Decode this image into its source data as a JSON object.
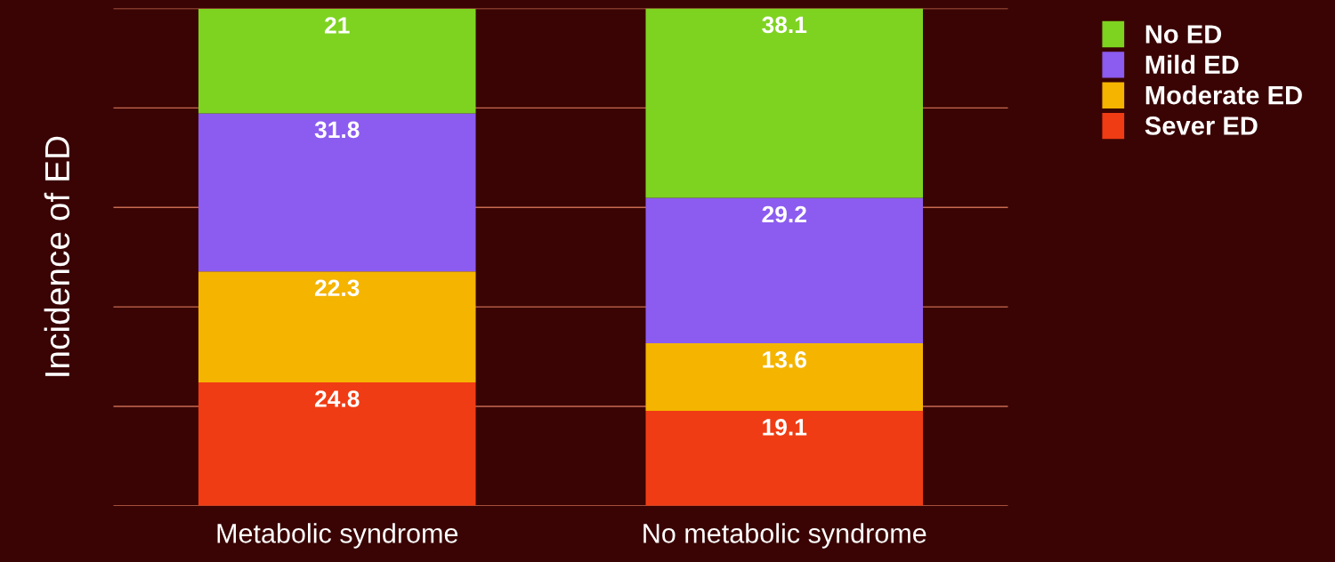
{
  "chart_data": {
    "type": "bar",
    "stacked": true,
    "ylabel": "Incidence of ED",
    "categories": [
      "Metabolic syndrome",
      "No metabolic syndrome"
    ],
    "series": [
      {
        "name": "Sever ED",
        "color": "#f03c14",
        "values": [
          24.8,
          19.1
        ]
      },
      {
        "name": "Moderate ED",
        "color": "#f5b400",
        "values": [
          22.3,
          13.6
        ]
      },
      {
        "name": "Mild ED",
        "color": "#8c5cf0",
        "values": [
          31.8,
          29.2
        ]
      },
      {
        "name": "No ED",
        "color": "#7ed321",
        "values": [
          21,
          38.1
        ]
      }
    ],
    "ylim": [
      0,
      100
    ],
    "yticks": [
      {
        "value": 0,
        "label": null
      },
      {
        "value": 20,
        "label": null
      },
      {
        "value": 40,
        "label": null
      },
      {
        "value": 60,
        "label": null
      },
      {
        "value": 80,
        "label": null
      },
      {
        "value": 100,
        "label": null
      }
    ],
    "grid": "y",
    "legend": "top right",
    "data_labels": true,
    "tick_labels": "x"
  }
}
